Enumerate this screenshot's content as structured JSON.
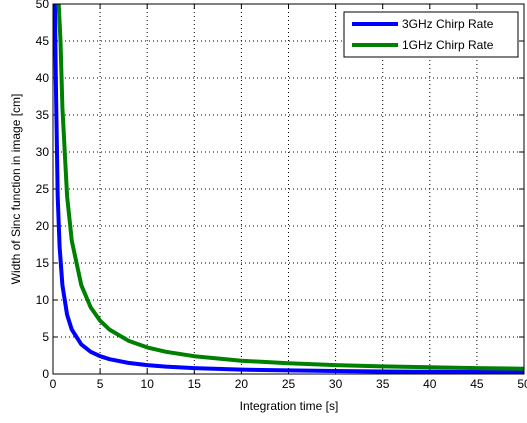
{
  "chart_data": {
    "type": "line",
    "xlabel": "Integration time [s]",
    "ylabel": "Width of Sinc function in image [cm]",
    "xlim": [
      0,
      50
    ],
    "ylim": [
      0,
      50
    ],
    "x_ticks": [
      0,
      5,
      10,
      15,
      20,
      25,
      30,
      35,
      40,
      45,
      50
    ],
    "y_ticks": [
      0,
      5,
      10,
      15,
      20,
      25,
      30,
      35,
      40,
      45,
      50
    ],
    "x_tick_labels": [
      "0",
      "5",
      "10",
      "15",
      "20",
      "25",
      "30",
      "35",
      "40",
      "45",
      "50"
    ],
    "y_tick_labels": [
      "0",
      "5",
      "10",
      "15",
      "20",
      "25",
      "30",
      "35",
      "40",
      "45",
      "50"
    ],
    "grid": true,
    "legend_position": "top-right",
    "series": [
      {
        "name": "3GHz Chirp Rate",
        "color": "#0000ff",
        "x": [
          0.2,
          0.3,
          0.5,
          0.7,
          1,
          1.5,
          2,
          3,
          4,
          5,
          6,
          8,
          10,
          12,
          15,
          20,
          25,
          30,
          35,
          40,
          45,
          50
        ],
        "values": [
          50,
          40,
          24,
          17.2,
          12,
          8,
          6,
          4,
          3,
          2.4,
          2,
          1.5,
          1.2,
          1,
          0.8,
          0.6,
          0.48,
          0.4,
          0.34,
          0.3,
          0.27,
          0.24
        ]
      },
      {
        "name": "1GHz Chirp Rate",
        "color": "#008000",
        "x": [
          0.6,
          0.8,
          1,
          1.5,
          2,
          3,
          4,
          5,
          6,
          8,
          10,
          12,
          15,
          20,
          25,
          30,
          35,
          40,
          45,
          50
        ],
        "values": [
          50,
          45,
          36,
          24,
          18,
          12,
          9,
          7.2,
          6,
          4.5,
          3.6,
          3,
          2.4,
          1.8,
          1.44,
          1.2,
          1.03,
          0.9,
          0.8,
          0.72
        ]
      }
    ]
  }
}
